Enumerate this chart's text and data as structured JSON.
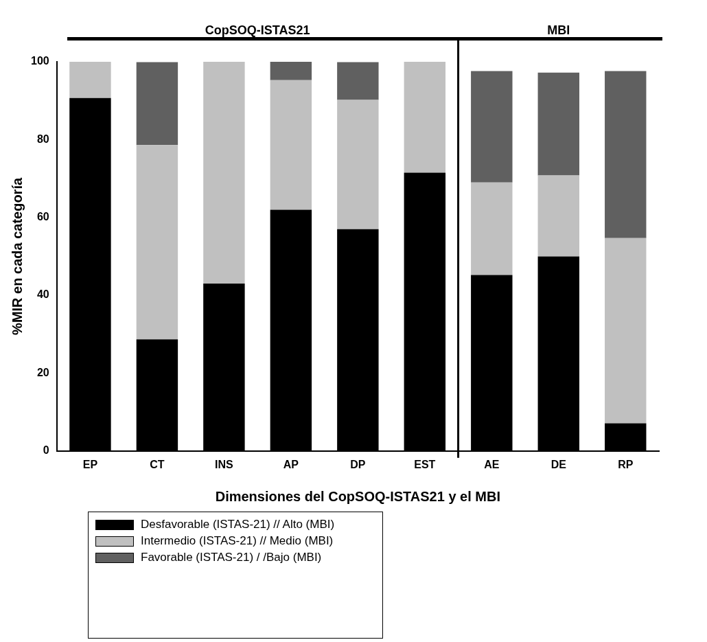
{
  "chart_data": {
    "type": "bar",
    "stacked": true,
    "xlabel": "Dimensiones del CopSOQ-ISTAS21 y el MBI",
    "ylabel": "%MIR en cada categoría",
    "categories": [
      "EP",
      "CT",
      "INS",
      "AP",
      "DP",
      "EST",
      "AE",
      "DE",
      "RP"
    ],
    "series": [
      {
        "name": "Desfavorable (ISTAS-21) // Alto (MBI)",
        "color": "#000000",
        "values": [
          90.7,
          28.7,
          43,
          62,
          57,
          71.5,
          45.2,
          50,
          7.1
        ]
      },
      {
        "name": "Intermedio (ISTAS-21) // Medio (MBI)",
        "color": "#c0c0c0",
        "values": [
          9.3,
          49.9,
          57,
          33.3,
          33.2,
          28.5,
          23.8,
          20.8,
          47.6
        ]
      },
      {
        "name": "Favorable (ISTAS-21) / /Bajo (MBI)",
        "color": "#606060",
        "values": [
          0,
          21.3,
          0,
          4.8,
          9.7,
          0,
          28.6,
          26.4,
          42.9
        ]
      }
    ],
    "ylim": [
      0,
      100
    ],
    "yticks": [
      0,
      20,
      40,
      60,
      80,
      100
    ],
    "grid": false,
    "legend": "bottom left",
    "annotations": [
      "CopSOQ-ISTAS21",
      "MBI"
    ]
  }
}
